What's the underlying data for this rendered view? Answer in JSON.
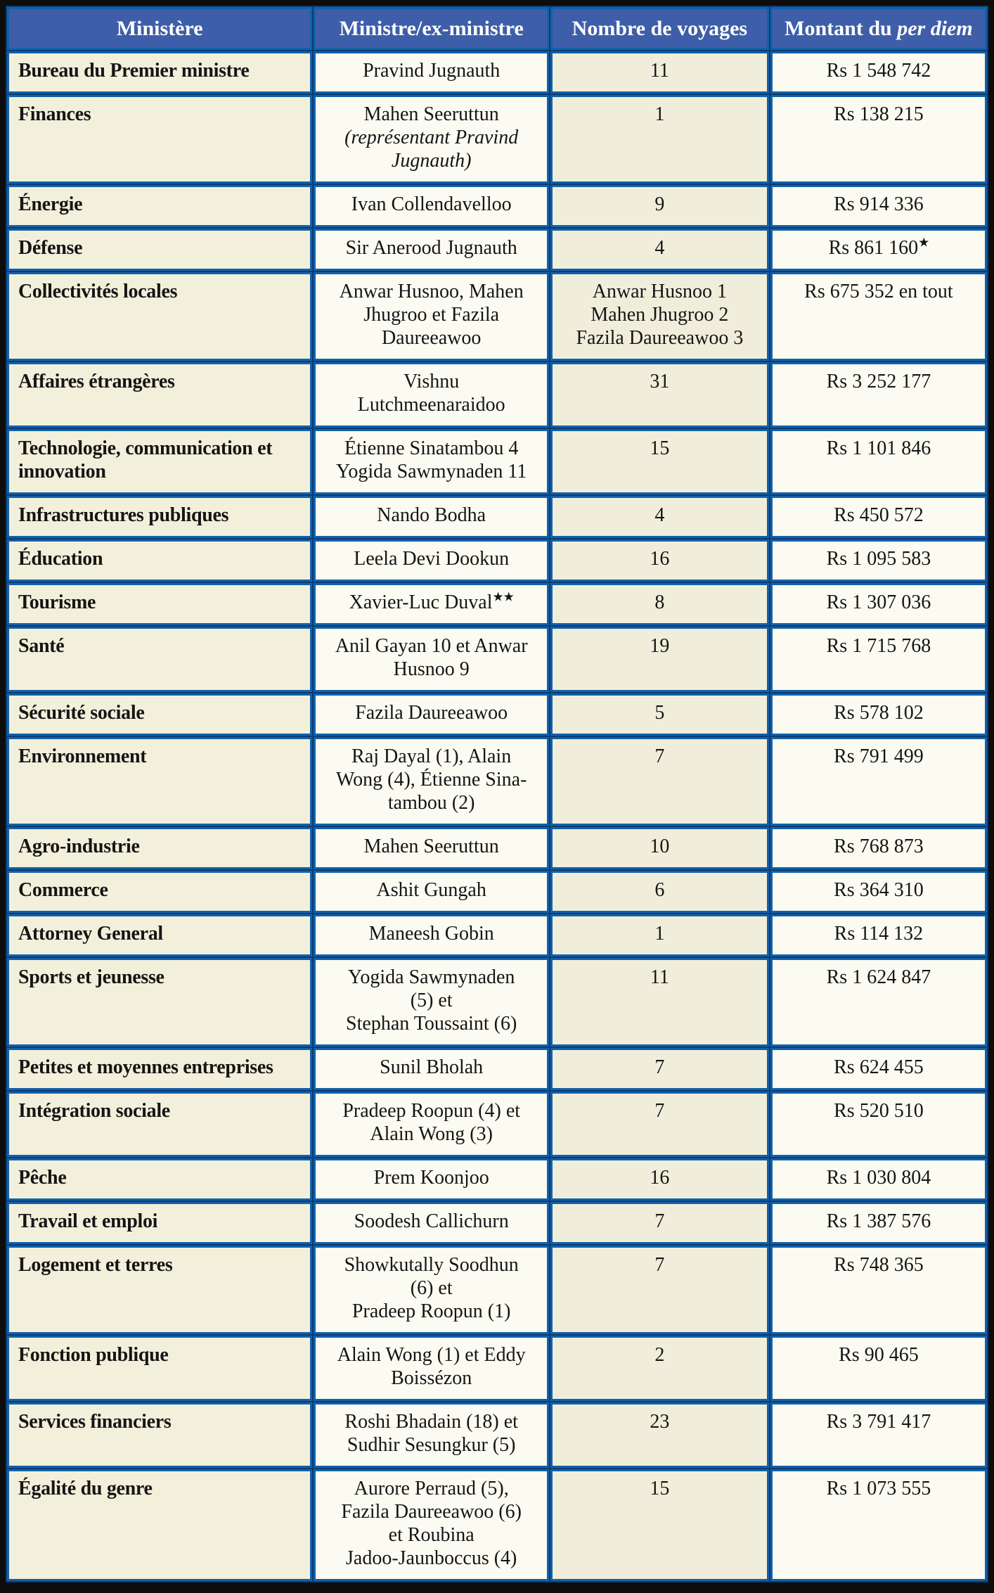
{
  "colors": {
    "frame_black": "#0d0d0d",
    "header_bg": "#3e5ea9",
    "header_text": "#ffffff",
    "grid_blue": "#1261a9",
    "grid_dark_seam": "#0b3c74",
    "col_beige": "#f2f0db",
    "col_cream": "#fcfbf1",
    "body_text": "#151515"
  },
  "chart_data": {
    "type": "table",
    "columns": [
      "Ministère",
      "Ministre/ex-ministre",
      "Nombre de voyages",
      "Montant du per diem"
    ],
    "amount_header": {
      "prefix": "Montant du ",
      "italic": "per diem"
    },
    "rows": [
      {
        "ministry": "Bureau du Premier ministre",
        "minister_lines": [
          {
            "text": "Pravind Jugnauth"
          }
        ],
        "voyages_lines": [
          "11"
        ],
        "amount": "Rs 1 548 742"
      },
      {
        "ministry": "Finances",
        "minister_lines": [
          {
            "text": "Mahen Seeruttun"
          },
          {
            "text": "(représentant Pravind",
            "italic": true
          },
          {
            "text": "Jugnauth)",
            "italic": true
          }
        ],
        "voyages_lines": [
          "1"
        ],
        "amount": "Rs 138 215"
      },
      {
        "ministry": "Énergie",
        "minister_lines": [
          {
            "text": "Ivan Collendavelloo"
          }
        ],
        "voyages_lines": [
          "9"
        ],
        "amount": "Rs 914 336"
      },
      {
        "ministry": "Défense",
        "minister_lines": [
          {
            "text": "Sir Anerood Jugnauth"
          }
        ],
        "voyages_lines": [
          "4"
        ],
        "amount": "Rs 861 160",
        "amount_stars": "★"
      },
      {
        "ministry": "Collectivités locales",
        "minister_lines": [
          {
            "text": "Anwar Husnoo, Mahen"
          },
          {
            "text": "Jhugroo et Fazila"
          },
          {
            "text": "Daureeawoo"
          }
        ],
        "voyages_lines": [
          "Anwar Husnoo 1",
          "Mahen Jhugroo 2",
          "Fazila Daureeawoo 3"
        ],
        "amount": "Rs 675 352 en tout"
      },
      {
        "ministry": "Affaires étrangères",
        "minister_lines": [
          {
            "text": "Vishnu"
          },
          {
            "text": "Lutchmeenaraidoo"
          }
        ],
        "voyages_lines": [
          "31"
        ],
        "amount": "Rs 3 252 177"
      },
      {
        "ministry": "Technologie, communication et innovation",
        "minister_lines": [
          {
            "text": "Étienne Sinatambou 4"
          },
          {
            "text": "Yogida Sawmynaden 11"
          }
        ],
        "voyages_lines": [
          "15"
        ],
        "amount": "Rs 1 101 846"
      },
      {
        "ministry": "Infrastructures publiques",
        "minister_lines": [
          {
            "text": "Nando Bodha"
          }
        ],
        "voyages_lines": [
          "4"
        ],
        "amount": "Rs 450 572"
      },
      {
        "ministry": "Éducation",
        "minister_lines": [
          {
            "text": "Leela Devi Dookun"
          }
        ],
        "voyages_lines": [
          "16"
        ],
        "amount": "Rs 1 095 583"
      },
      {
        "ministry": "Tourisme",
        "minister_lines": [
          {
            "text": "Xavier-Luc Duval",
            "stars": "★★"
          }
        ],
        "voyages_lines": [
          "8"
        ],
        "amount": "Rs 1 307 036"
      },
      {
        "ministry": "Santé",
        "minister_lines": [
          {
            "text": "Anil Gayan 10 et Anwar"
          },
          {
            "text": "Husnoo 9"
          }
        ],
        "voyages_lines": [
          "19"
        ],
        "amount": "Rs 1 715 768"
      },
      {
        "ministry": "Sécurité sociale",
        "minister_lines": [
          {
            "text": "Fazila Daureeawoo"
          }
        ],
        "voyages_lines": [
          "5"
        ],
        "amount": "Rs 578 102"
      },
      {
        "ministry": "Environnement",
        "minister_lines": [
          {
            "text": "Raj Dayal (1), Alain"
          },
          {
            "text": "Wong (4), Étienne Sina-"
          },
          {
            "text": "tambou (2)"
          }
        ],
        "voyages_lines": [
          "7"
        ],
        "amount": "Rs 791 499"
      },
      {
        "ministry": "Agro-industrie",
        "minister_lines": [
          {
            "text": "Mahen Seeruttun"
          }
        ],
        "voyages_lines": [
          "10"
        ],
        "amount": "Rs 768 873"
      },
      {
        "ministry": "Commerce",
        "minister_lines": [
          {
            "text": "Ashit Gungah"
          }
        ],
        "voyages_lines": [
          "6"
        ],
        "amount": "Rs 364 310"
      },
      {
        "ministry": "Attorney General",
        "minister_lines": [
          {
            "text": "Maneesh Gobin"
          }
        ],
        "voyages_lines": [
          "1"
        ],
        "amount": "Rs 114 132"
      },
      {
        "ministry": "Sports et jeunesse",
        "minister_lines": [
          {
            "text": "Yogida Sawmynaden"
          },
          {
            "text": "(5) et"
          },
          {
            "text": "Stephan Toussaint (6)"
          }
        ],
        "voyages_lines": [
          "11"
        ],
        "amount": "Rs 1 624 847"
      },
      {
        "ministry": "Petites et moyennes entreprises",
        "minister_lines": [
          {
            "text": "Sunil Bholah"
          }
        ],
        "voyages_lines": [
          "7"
        ],
        "amount": "Rs 624 455"
      },
      {
        "ministry": "Intégration sociale",
        "minister_lines": [
          {
            "text": "Pradeep Roopun (4) et"
          },
          {
            "text": "Alain Wong (3)"
          }
        ],
        "voyages_lines": [
          "7"
        ],
        "amount": "Rs 520 510"
      },
      {
        "ministry": "Pêche",
        "minister_lines": [
          {
            "text": "Prem Koonjoo"
          }
        ],
        "voyages_lines": [
          "16"
        ],
        "amount": "Rs 1 030 804"
      },
      {
        "ministry": "Travail et emploi",
        "minister_lines": [
          {
            "text": "Soodesh Callichurn"
          }
        ],
        "voyages_lines": [
          "7"
        ],
        "amount": "Rs 1 387 576"
      },
      {
        "ministry": "Logement et terres",
        "minister_lines": [
          {
            "text": "Showkutally Soodhun"
          },
          {
            "text": "(6) et"
          },
          {
            "text": "Pradeep Roopun (1)"
          }
        ],
        "voyages_lines": [
          "7"
        ],
        "amount": "Rs 748 365"
      },
      {
        "ministry": "Fonction publique",
        "minister_lines": [
          {
            "text": "Alain Wong (1) et Eddy"
          },
          {
            "text": "Boissézon"
          }
        ],
        "voyages_lines": [
          "2"
        ],
        "amount": "Rs 90 465"
      },
      {
        "ministry": "Services financiers",
        "minister_lines": [
          {
            "text": "Roshi Bhadain (18) et"
          },
          {
            "text": "Sudhir Sesungkur (5)"
          }
        ],
        "voyages_lines": [
          "23"
        ],
        "amount": "Rs 3 791 417"
      },
      {
        "ministry": "Égalité du genre",
        "minister_lines": [
          {
            "text": "Aurore Perraud (5),"
          },
          {
            "text": "Fazila Daureeawoo (6)"
          },
          {
            "text": "et Roubina"
          },
          {
            "text": "Jadoo-Jaunboccus (4)"
          }
        ],
        "voyages_lines": [
          "15"
        ],
        "amount": "Rs 1 073 555"
      }
    ]
  }
}
